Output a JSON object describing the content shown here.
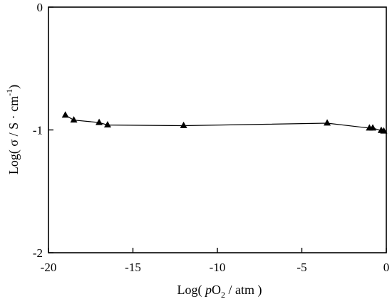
{
  "chart_data": {
    "type": "line",
    "marker": "triangle",
    "title": "",
    "xlim": [
      -20,
      0
    ],
    "ylim": [
      -2,
      0
    ],
    "xticks": [
      -20,
      -15,
      -10,
      -5,
      0
    ],
    "yticks": [
      -2,
      -1,
      0
    ],
    "x_tick_labels": [
      "-20",
      "-15",
      "-10",
      "-5",
      "0"
    ],
    "y_tick_labels": [
      "-2",
      "-1",
      "0"
    ],
    "xlabel": {
      "prefix": "Log( ",
      "italic": "p",
      "main": "O",
      "sub": "2",
      "suffix": " / atm )"
    },
    "ylabel": {
      "prefix": "Log( σ / S · cm",
      "sup": "-1",
      "suffix": ")"
    },
    "series": [
      {
        "color": "#000000",
        "x": [
          -19.0,
          -18.5,
          -17.0,
          -16.5,
          -12.0,
          -3.5,
          -1.0,
          -0.8,
          -0.3,
          -0.15
        ],
        "y": [
          -0.88,
          -0.92,
          -0.94,
          -0.96,
          -0.965,
          -0.945,
          -0.985,
          -0.985,
          -1.005,
          -1.01
        ]
      }
    ]
  }
}
